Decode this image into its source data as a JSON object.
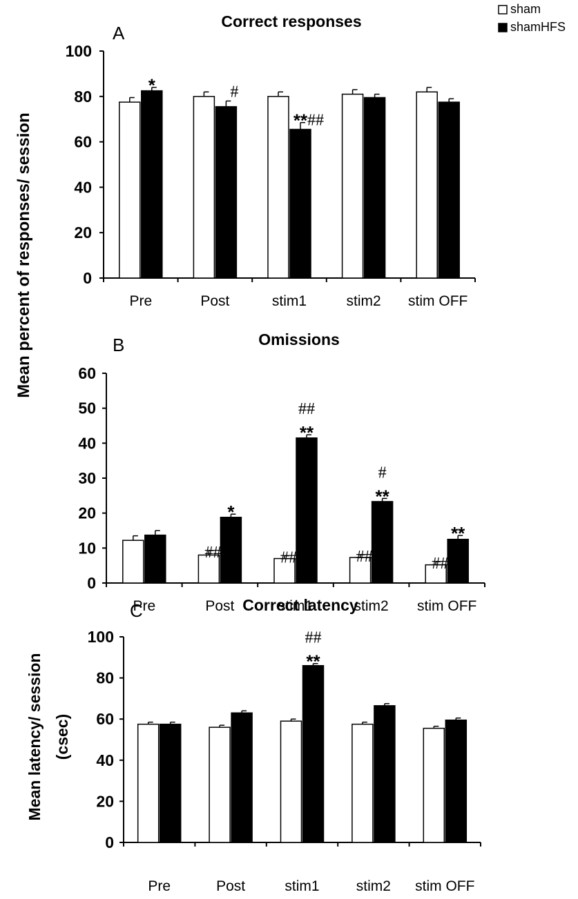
{
  "legend": {
    "placement": "top-right",
    "items": [
      {
        "label": "sham",
        "color": "#ffffff"
      },
      {
        "label": "shamHFS",
        "color": "#000000"
      }
    ]
  },
  "shared_ylabel": "Mean percent of responses/ session",
  "chart_data": [
    {
      "type": "bar",
      "panel": "A",
      "title": "Correct responses",
      "categories": [
        "Pre",
        "Post",
        "stim1",
        "stim2",
        "stim OFF"
      ],
      "yticks": [
        0,
        20,
        40,
        60,
        80,
        100
      ],
      "ylim": [
        0,
        100
      ],
      "series": [
        {
          "name": "sham",
          "values": [
            77.5,
            80,
            80,
            81,
            82
          ],
          "errors": [
            2,
            2,
            2,
            2,
            2
          ]
        },
        {
          "name": "shamHFS",
          "values": [
            82.5,
            75.5,
            65.5,
            79.5,
            77.5
          ],
          "errors": [
            1.5,
            2.5,
            3,
            1.5,
            1.5
          ]
        }
      ],
      "annotations": [
        {
          "category": 0,
          "series": 1,
          "hash": "",
          "star": "*"
        },
        {
          "category": 1,
          "series": 1,
          "hash": "#",
          "star": ""
        },
        {
          "category": 2,
          "series": 1,
          "hash": "##",
          "star": "**"
        }
      ]
    },
    {
      "type": "bar",
      "panel": "B",
      "title": "Omissions",
      "categories": [
        "Pre",
        "Post",
        "stim1",
        "stim2",
        "stim OFF"
      ],
      "yticks": [
        0,
        10,
        20,
        30,
        40,
        50,
        60
      ],
      "ylim": [
        0,
        60
      ],
      "series": [
        {
          "name": "sham",
          "values": [
            12.2,
            8,
            7,
            7.3,
            5.2
          ],
          "errors": [
            1.3,
            1.3,
            0.8,
            0.8,
            0.9
          ]
        },
        {
          "name": "shamHFS",
          "values": [
            13.7,
            18.8,
            41.5,
            23.3,
            12.5
          ],
          "errors": [
            1.3,
            0.9,
            0.9,
            0.9,
            1.1
          ]
        }
      ],
      "annotations": [
        {
          "category": 1,
          "series": 0,
          "hash": "##",
          "star": ""
        },
        {
          "category": 1,
          "series": 1,
          "hash": "",
          "star": "*"
        },
        {
          "category": 2,
          "series": 0,
          "hash": "##",
          "star": ""
        },
        {
          "category": 2,
          "series": 1,
          "hash": "##",
          "star": "**"
        },
        {
          "category": 3,
          "series": 0,
          "hash": "##",
          "star": ""
        },
        {
          "category": 3,
          "series": 1,
          "hash": "#",
          "star": "**"
        },
        {
          "category": 4,
          "series": 0,
          "hash": "##",
          "star": ""
        },
        {
          "category": 4,
          "series": 1,
          "hash": "",
          "star": "**"
        }
      ]
    },
    {
      "type": "bar",
      "panel": "C",
      "title": "Correct latency",
      "ylabel_lines": [
        "Mean latency/ session",
        "(csec)"
      ],
      "categories": [
        "Pre",
        "Post",
        "stim1",
        "stim2",
        "stim OFF"
      ],
      "yticks": [
        0,
        20,
        40,
        60,
        80,
        100
      ],
      "ylim": [
        0,
        100
      ],
      "series": [
        {
          "name": "sham",
          "values": [
            57.5,
            56,
            59,
            57.5,
            55.5
          ],
          "errors": [
            1,
            1,
            1,
            1,
            1
          ]
        },
        {
          "name": "shamHFS",
          "values": [
            57.5,
            63,
            86,
            66.5,
            59.5
          ],
          "errors": [
            1,
            1,
            1,
            1,
            1
          ]
        }
      ],
      "annotations": [
        {
          "category": 2,
          "series": 1,
          "hash": "##",
          "star": "**"
        }
      ]
    }
  ]
}
